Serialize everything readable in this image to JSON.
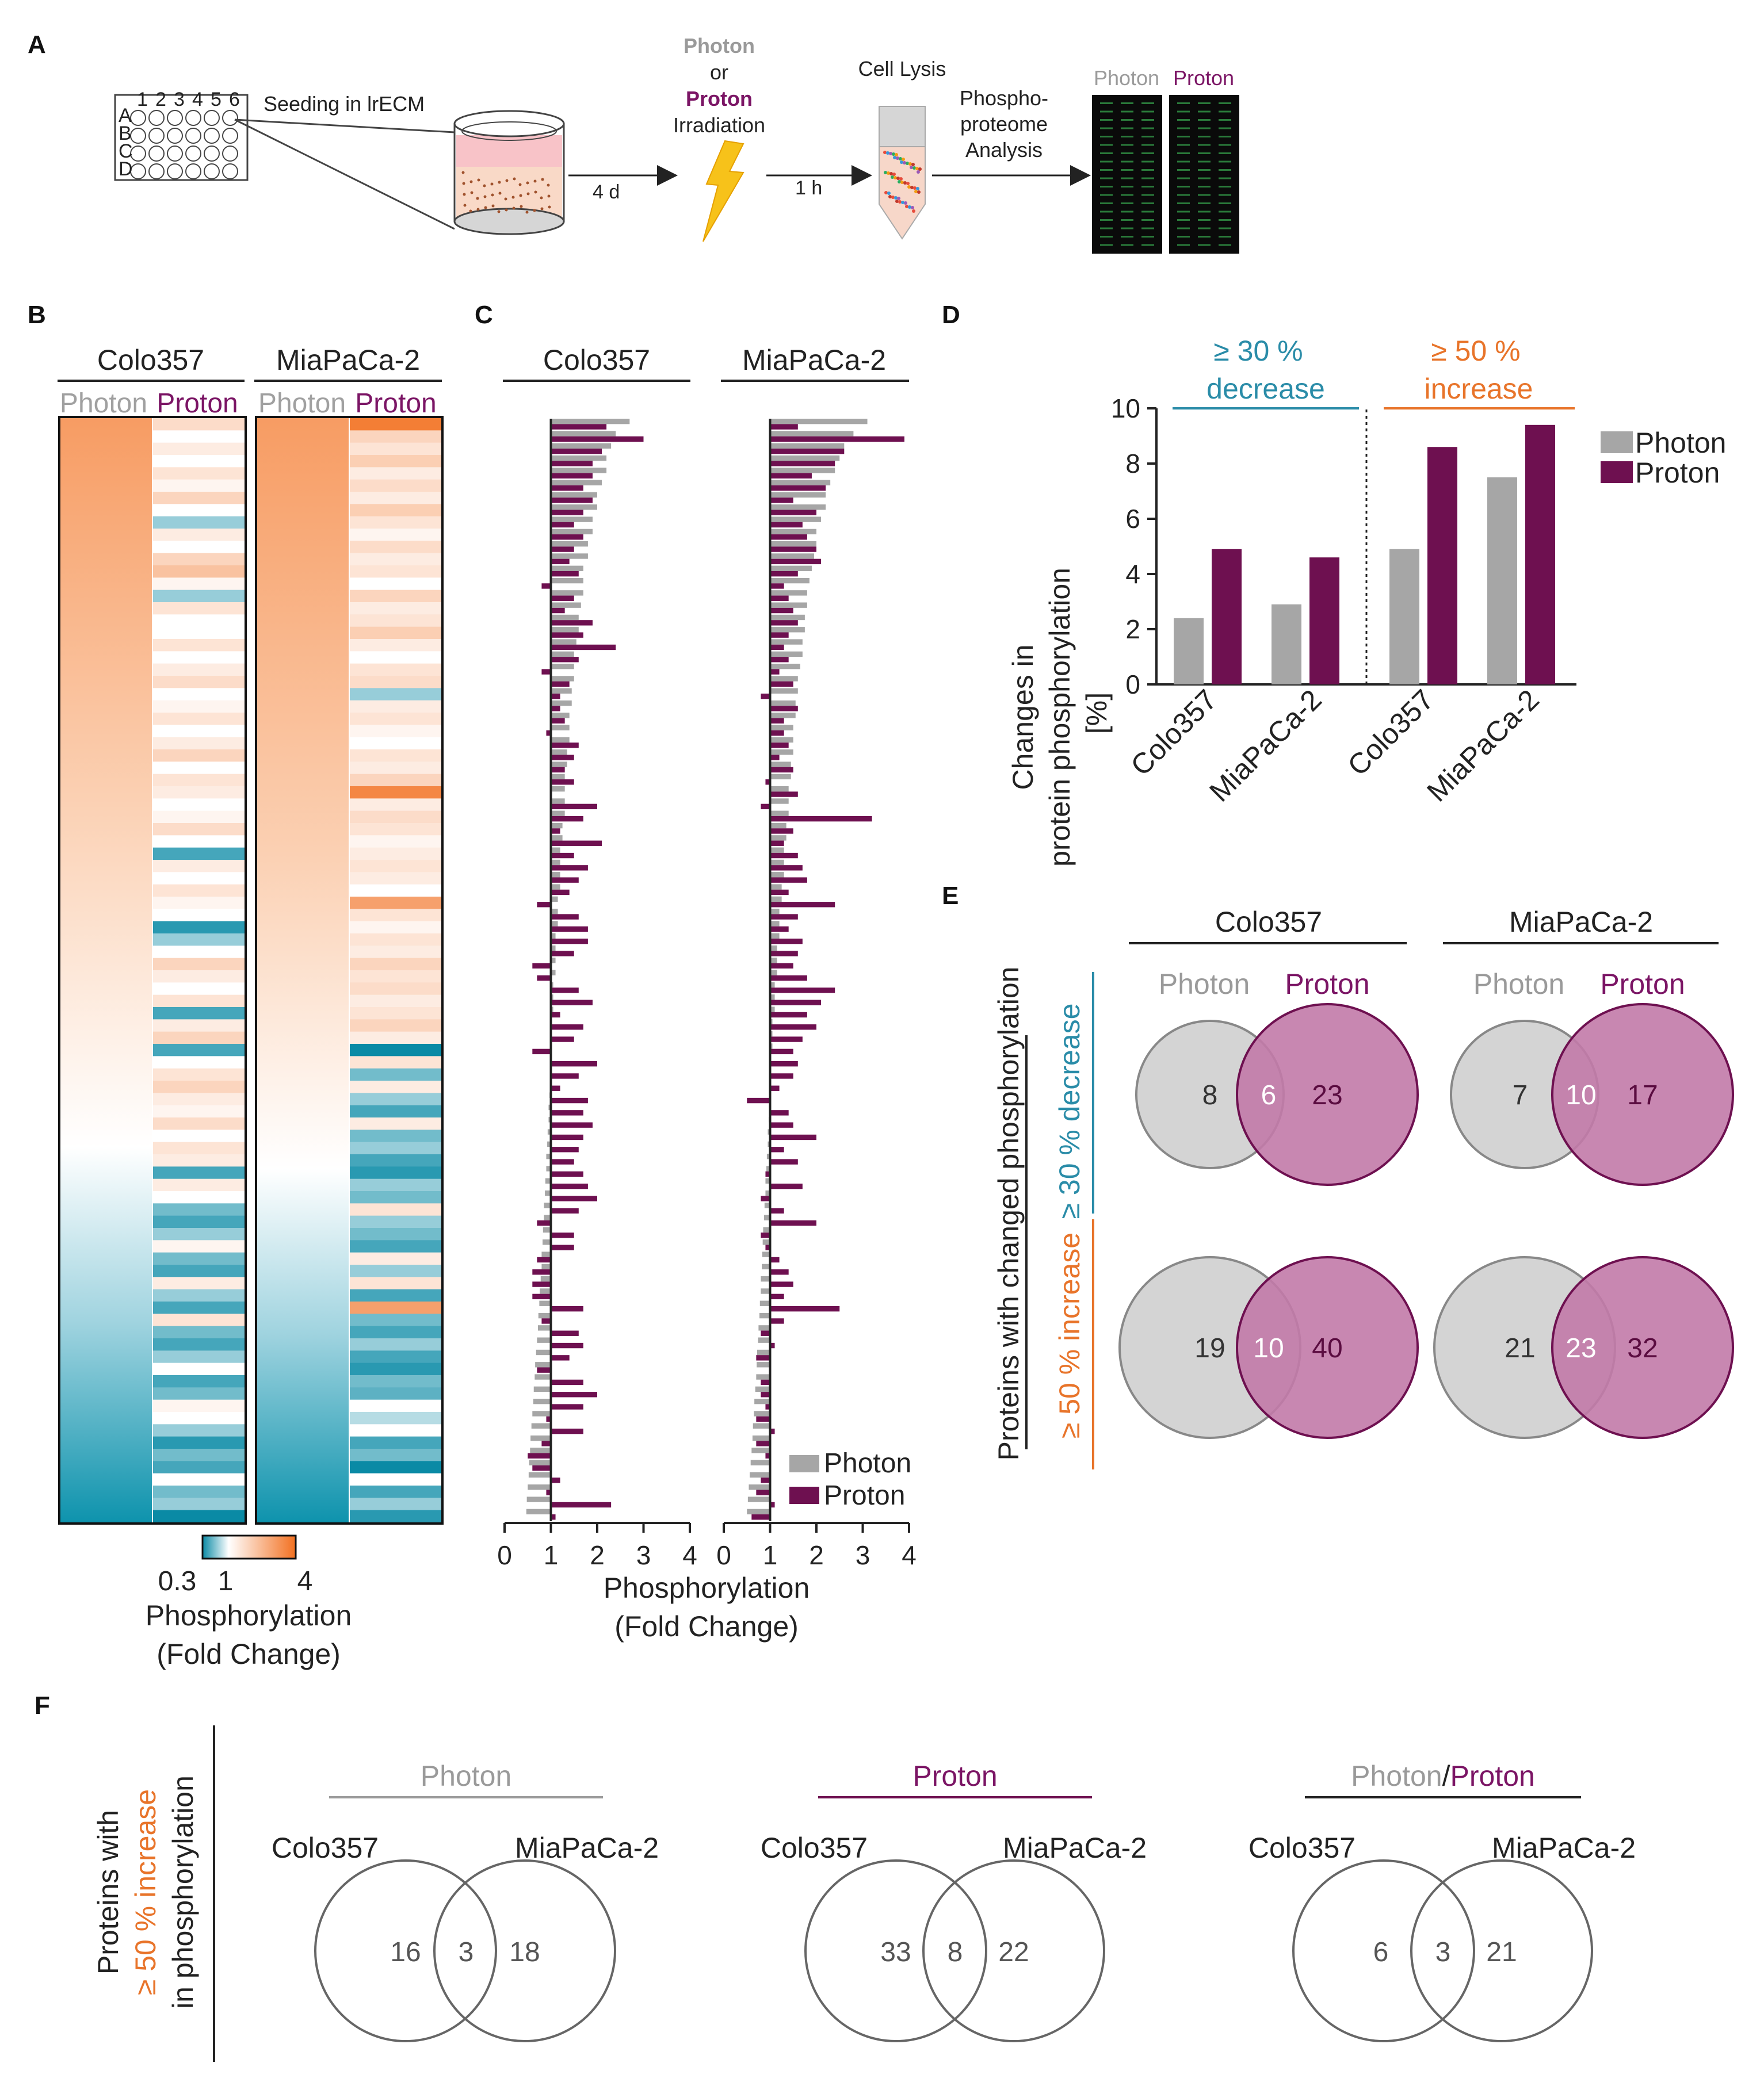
{
  "panel_labels": {
    "a": "A",
    "b": "B",
    "c": "C",
    "d": "D",
    "e": "E",
    "f": "F"
  },
  "colors": {
    "photon": "#a6a6a6",
    "proton": "#6e1050",
    "photon_text": "#9a9a9a",
    "proton_text": "#7b1565",
    "decrease": "#2a8ca8",
    "increase": "#e8742a",
    "venn_gray": "#d4d4d4",
    "venn_proton": "#c27aa8"
  },
  "panel_a": {
    "photon": "Photon",
    "or": "or",
    "proton": "Proton",
    "irradiation": "Irradiation",
    "seeding": "Seeding in lrECM",
    "plate_cols": [
      "1",
      "2",
      "3",
      "4",
      "5",
      "6"
    ],
    "plate_rows": [
      "A",
      "B",
      "C",
      "D"
    ],
    "time_4d": "4 d",
    "time_1h": "1 h",
    "cell_lysis": "Cell Lysis",
    "analysis_line1": "Phospho-",
    "analysis_line2": "proteome",
    "analysis_line3": "Analysis",
    "array_photon": "Photon",
    "array_proton": "Proton"
  },
  "panel_b": {
    "cell_line_1": "Colo357",
    "cell_line_2": "MiaPaCa-2",
    "col_photon": "Photon",
    "col_proton": "Proton",
    "scale_min": "0.3",
    "scale_mid": "1",
    "scale_max": "4",
    "scale_title_1": "Phosphorylation",
    "scale_title_2": "(Fold Change)"
  },
  "panel_c": {
    "cell_line_1": "Colo357",
    "cell_line_2": "MiaPaCa-2",
    "ticks": [
      "0",
      "1",
      "2",
      "3",
      "4"
    ],
    "xlabel_1": "Phosphorylation",
    "xlabel_2": "(Fold Change)",
    "legend_photon": "Photon",
    "legend_proton": "Proton"
  },
  "panel_e": {
    "colo": "Colo357",
    "mia": "MiaPaCa-2",
    "photon": "Photon",
    "proton": "Proton",
    "ylabel": "Proteins with changed phosphorylation",
    "decrease_label": "≥ 30 % decrease",
    "increase_label": "≥ 50 % increase",
    "venns": {
      "colo_dec": {
        "left": "8",
        "mid": "6",
        "right": "23"
      },
      "mia_dec": {
        "left": "7",
        "mid": "10",
        "right": "17"
      },
      "colo_inc": {
        "left": "19",
        "mid": "10",
        "right": "40"
      },
      "mia_inc": {
        "left": "21",
        "mid": "23",
        "right": "32"
      }
    }
  },
  "panel_f": {
    "ylabel_1": "Proteins with",
    "ylabel_2": "≥ 50 % increase",
    "ylabel_3": "in phosphorylation",
    "photon_title": "Photon",
    "proton_title": "Proton",
    "combo_photon": "Photon",
    "combo_slash": "/",
    "combo_proton": "Proton",
    "colo": "Colo357",
    "mia": "MiaPaCa-2",
    "venns": {
      "photon": {
        "left": "16",
        "mid": "3",
        "right": "18"
      },
      "proton": {
        "left": "33",
        "mid": "8",
        "right": "22"
      },
      "combo": {
        "left": "6",
        "mid": "3",
        "right": "21"
      }
    }
  },
  "chart_data": [
    {
      "panel": "D",
      "type": "bar",
      "ylabel": "Changes in protein phosphorylation [%]",
      "ylim": [
        0,
        10
      ],
      "yticks": [
        0,
        2,
        4,
        6,
        8,
        10
      ],
      "groups": [
        {
          "label_line1": "≥ 30 %",
          "label_line2": "decrease",
          "color_key": "decrease",
          "categories": [
            "Colo357",
            "MiaPaCa-2"
          ],
          "series": [
            {
              "name": "Photon",
              "values": [
                2.4,
                2.9
              ]
            },
            {
              "name": "Proton",
              "values": [
                4.9,
                4.6
              ]
            }
          ]
        },
        {
          "label_line1": "≥ 50 %",
          "label_line2": "increase",
          "color_key": "increase",
          "categories": [
            "Colo357",
            "MiaPaCa-2"
          ],
          "series": [
            {
              "name": "Photon",
              "values": [
                4.9,
                7.5
              ]
            },
            {
              "name": "Proton",
              "values": [
                8.6,
                9.4
              ]
            }
          ]
        }
      ],
      "legend": [
        "Photon",
        "Proton"
      ]
    },
    {
      "panel": "C",
      "type": "bar",
      "orientation": "horizontal",
      "xlim": [
        0,
        4
      ],
      "xticks": [
        0,
        1,
        2,
        3,
        4
      ],
      "baseline": 1,
      "sorting": "Photon fold change, descending",
      "series": [
        {
          "cell_line": "Colo357",
          "photon": [
            2.7,
            2.4,
            2.3,
            2.2,
            2.2,
            2.1,
            2.0,
            2.0,
            1.9,
            1.9,
            1.8,
            1.8,
            1.7,
            1.7,
            1.7,
            1.65,
            1.6,
            1.6,
            1.55,
            1.5,
            1.5,
            1.5,
            1.45,
            1.45,
            1.4,
            1.4,
            1.4,
            1.35,
            1.35,
            1.3,
            1.3,
            1.3,
            1.3,
            1.25,
            1.25,
            1.2,
            1.2,
            1.2,
            1.2,
            1.15,
            1.15,
            1.15,
            1.1,
            1.1,
            1.1,
            1.1,
            1.05,
            1.05,
            1.05,
            1.0,
            1.0,
            1.0,
            1.0,
            1.0,
            0.98,
            0.97,
            0.95,
            0.95,
            0.93,
            0.92,
            0.9,
            0.9,
            0.88,
            0.87,
            0.85,
            0.85,
            0.83,
            0.82,
            0.8,
            0.8,
            0.78,
            0.76,
            0.75,
            0.73,
            0.72,
            0.7,
            0.68,
            0.66,
            0.65,
            0.63,
            0.62,
            0.6,
            0.58,
            0.56,
            0.55,
            0.53,
            0.52,
            0.5,
            0.48,
            0.47
          ],
          "proton": [
            2.2,
            3.0,
            2.1,
            1.9,
            1.9,
            1.7,
            1.9,
            1.7,
            1.5,
            1.7,
            1.5,
            1.4,
            1.6,
            0.8,
            1.5,
            1.3,
            1.9,
            1.7,
            2.4,
            1.6,
            0.8,
            1.4,
            1.2,
            1.2,
            1.3,
            0.9,
            1.6,
            1.5,
            1.3,
            1.5,
            1.0,
            2.0,
            1.7,
            1.2,
            2.1,
            1.5,
            1.8,
            1.6,
            1.4,
            0.7,
            1.6,
            1.8,
            1.8,
            1.5,
            0.6,
            0.7,
            1.6,
            1.9,
            1.2,
            1.7,
            1.5,
            0.6,
            2.0,
            1.6,
            1.2,
            1.8,
            1.7,
            1.9,
            1.7,
            1.6,
            1.5,
            1.7,
            1.8,
            2.0,
            1.6,
            0.7,
            1.5,
            1.5,
            0.7,
            0.6,
            0.6,
            0.6,
            1.7,
            0.8,
            1.6,
            1.7,
            1.4,
            0.7,
            1.7,
            2.0,
            1.7,
            0.9,
            1.7,
            0.8,
            0.5,
            0.6,
            1.2,
            0.9,
            2.3,
            1.1
          ]
        },
        {
          "cell_line": "MiaPaCa-2",
          "photon": [
            3.1,
            2.8,
            2.6,
            2.5,
            2.4,
            2.3,
            2.2,
            2.2,
            2.1,
            2.0,
            2.0,
            1.95,
            1.9,
            1.85,
            1.8,
            1.8,
            1.75,
            1.75,
            1.7,
            1.7,
            1.65,
            1.6,
            1.6,
            1.55,
            1.55,
            1.5,
            1.5,
            1.5,
            1.45,
            1.45,
            1.4,
            1.4,
            1.4,
            1.35,
            1.35,
            1.3,
            1.3,
            1.3,
            1.25,
            1.25,
            1.2,
            1.2,
            1.2,
            1.15,
            1.15,
            1.15,
            1.1,
            1.1,
            1.1,
            1.05,
            1.05,
            1.05,
            1.0,
            1.0,
            1.0,
            1.0,
            0.98,
            0.97,
            0.95,
            0.95,
            0.93,
            0.92,
            0.9,
            0.9,
            0.88,
            0.87,
            0.85,
            0.84,
            0.83,
            0.82,
            0.8,
            0.8,
            0.78,
            0.77,
            0.75,
            0.74,
            0.72,
            0.71,
            0.7,
            0.68,
            0.66,
            0.65,
            0.63,
            0.62,
            0.6,
            0.58,
            0.56,
            0.54,
            0.52,
            0.5
          ],
          "proton": [
            1.6,
            3.9,
            2.6,
            2.4,
            1.9,
            2.2,
            1.5,
            2.0,
            1.7,
            1.8,
            2.0,
            2.1,
            1.6,
            1.3,
            1.4,
            1.5,
            1.6,
            1.4,
            1.3,
            1.4,
            1.2,
            1.5,
            0.8,
            1.6,
            1.3,
            1.3,
            1.4,
            1.2,
            1.5,
            0.9,
            1.6,
            0.8,
            3.2,
            1.5,
            1.3,
            1.6,
            1.7,
            1.8,
            1.4,
            2.4,
            1.6,
            1.4,
            1.7,
            1.6,
            1.5,
            1.8,
            2.4,
            2.1,
            1.8,
            2.0,
            1.7,
            1.5,
            1.6,
            1.5,
            1.2,
            0.5,
            1.4,
            1.5,
            2.0,
            1.3,
            1.6,
            0.9,
            1.7,
            0.8,
            1.3,
            2.0,
            0.8,
            0.9,
            1.2,
            1.4,
            1.5,
            1.3,
            2.5,
            1.3,
            0.8,
            1.1,
            0.7,
            1.0,
            0.8,
            0.8,
            0.9,
            0.7,
            1.1,
            0.7,
            0.9,
            1.0,
            0.8,
            0.7,
            1.1,
            0.6
          ]
        }
      ]
    },
    {
      "panel": "B",
      "type": "heatmap",
      "scale": {
        "min": 0.3,
        "mid": 1,
        "max": 4
      },
      "columns": [
        "Colo357 Photon",
        "Colo357 Proton",
        "MiaPaCa-2 Photon",
        "MiaPaCa-2 Proton"
      ],
      "colo_proton_values": [
        1.4,
        1.0,
        1.2,
        1.0,
        1.3,
        1.1,
        1.5,
        1.0,
        0.6,
        1.2,
        1.0,
        1.5,
        1.8,
        1.1,
        0.6,
        1.3,
        1.0,
        1.0,
        1.3,
        1.0,
        1.2,
        1.4,
        1.0,
        1.1,
        1.3,
        1.0,
        1.2,
        1.5,
        1.0,
        1.3,
        1.2,
        1.0,
        1.1,
        1.4,
        1.0,
        0.4,
        1.2,
        1.0,
        1.3,
        1.1,
        1.0,
        0.35,
        0.6,
        1.0,
        1.5,
        1.2,
        1.0,
        1.3,
        0.4,
        1.2,
        1.5,
        0.4,
        1.0,
        1.3,
        1.5,
        1.2,
        1.1,
        1.4,
        1.0,
        1.3,
        1.2,
        0.4,
        1.2,
        1.0,
        0.5,
        0.4,
        0.6,
        1.1,
        0.5,
        0.4,
        1.2,
        0.6,
        0.4,
        1.3,
        0.5,
        0.4,
        0.6,
        1.0,
        0.4,
        0.5,
        1.1,
        1.0,
        0.6,
        0.35,
        0.5,
        0.4,
        1.0,
        0.5,
        0.6,
        0.3
      ],
      "mia_proton_values": [
        3.5,
        1.5,
        1.3,
        1.6,
        1.2,
        1.4,
        1.2,
        1.6,
        1.3,
        1.1,
        1.4,
        1.2,
        1.3,
        1.0,
        1.5,
        1.2,
        1.3,
        1.6,
        1.2,
        1.0,
        1.3,
        1.4,
        0.6,
        1.2,
        1.3,
        1.1,
        1.0,
        1.3,
        1.2,
        1.5,
        3.2,
        1.2,
        1.4,
        1.3,
        1.1,
        1.2,
        1.3,
        1.2,
        1.0,
        2.5,
        1.3,
        1.1,
        1.3,
        1.2,
        1.5,
        1.3,
        1.4,
        1.2,
        1.3,
        1.5,
        1.2,
        0.3,
        1.3,
        0.5,
        1.2,
        0.6,
        0.4,
        1.2,
        0.5,
        0.6,
        0.4,
        0.35,
        0.6,
        0.5,
        1.3,
        0.6,
        0.5,
        0.4,
        1.2,
        0.6,
        1.3,
        0.4,
        2.5,
        0.5,
        0.4,
        0.6,
        0.4,
        0.35,
        0.5,
        0.45,
        1.0,
        0.7,
        1.0,
        0.4,
        0.5,
        0.3,
        1.0,
        0.4,
        0.6,
        0.35
      ]
    },
    {
      "panel": "E",
      "type": "venn",
      "sets": [
        {
          "cell_line": "Colo357",
          "change": "≥ 30 % decrease",
          "photon_only": 8,
          "both": 6,
          "proton_only": 23
        },
        {
          "cell_line": "MiaPaCa-2",
          "change": "≥ 30 % decrease",
          "photon_only": 7,
          "both": 10,
          "proton_only": 17
        },
        {
          "cell_line": "Colo357",
          "change": "≥ 50 % increase",
          "photon_only": 19,
          "both": 10,
          "proton_only": 40
        },
        {
          "cell_line": "MiaPaCa-2",
          "change": "≥ 50 % increase",
          "photon_only": 21,
          "both": 23,
          "proton_only": 32
        }
      ]
    },
    {
      "panel": "F",
      "type": "venn",
      "sets": [
        {
          "title": "Photon",
          "colo_only": 16,
          "both": 3,
          "mia_only": 18
        },
        {
          "title": "Proton",
          "colo_only": 33,
          "both": 8,
          "mia_only": 22
        },
        {
          "title": "Photon/Proton",
          "colo_only": 6,
          "both": 3,
          "mia_only": 21
        }
      ]
    }
  ]
}
